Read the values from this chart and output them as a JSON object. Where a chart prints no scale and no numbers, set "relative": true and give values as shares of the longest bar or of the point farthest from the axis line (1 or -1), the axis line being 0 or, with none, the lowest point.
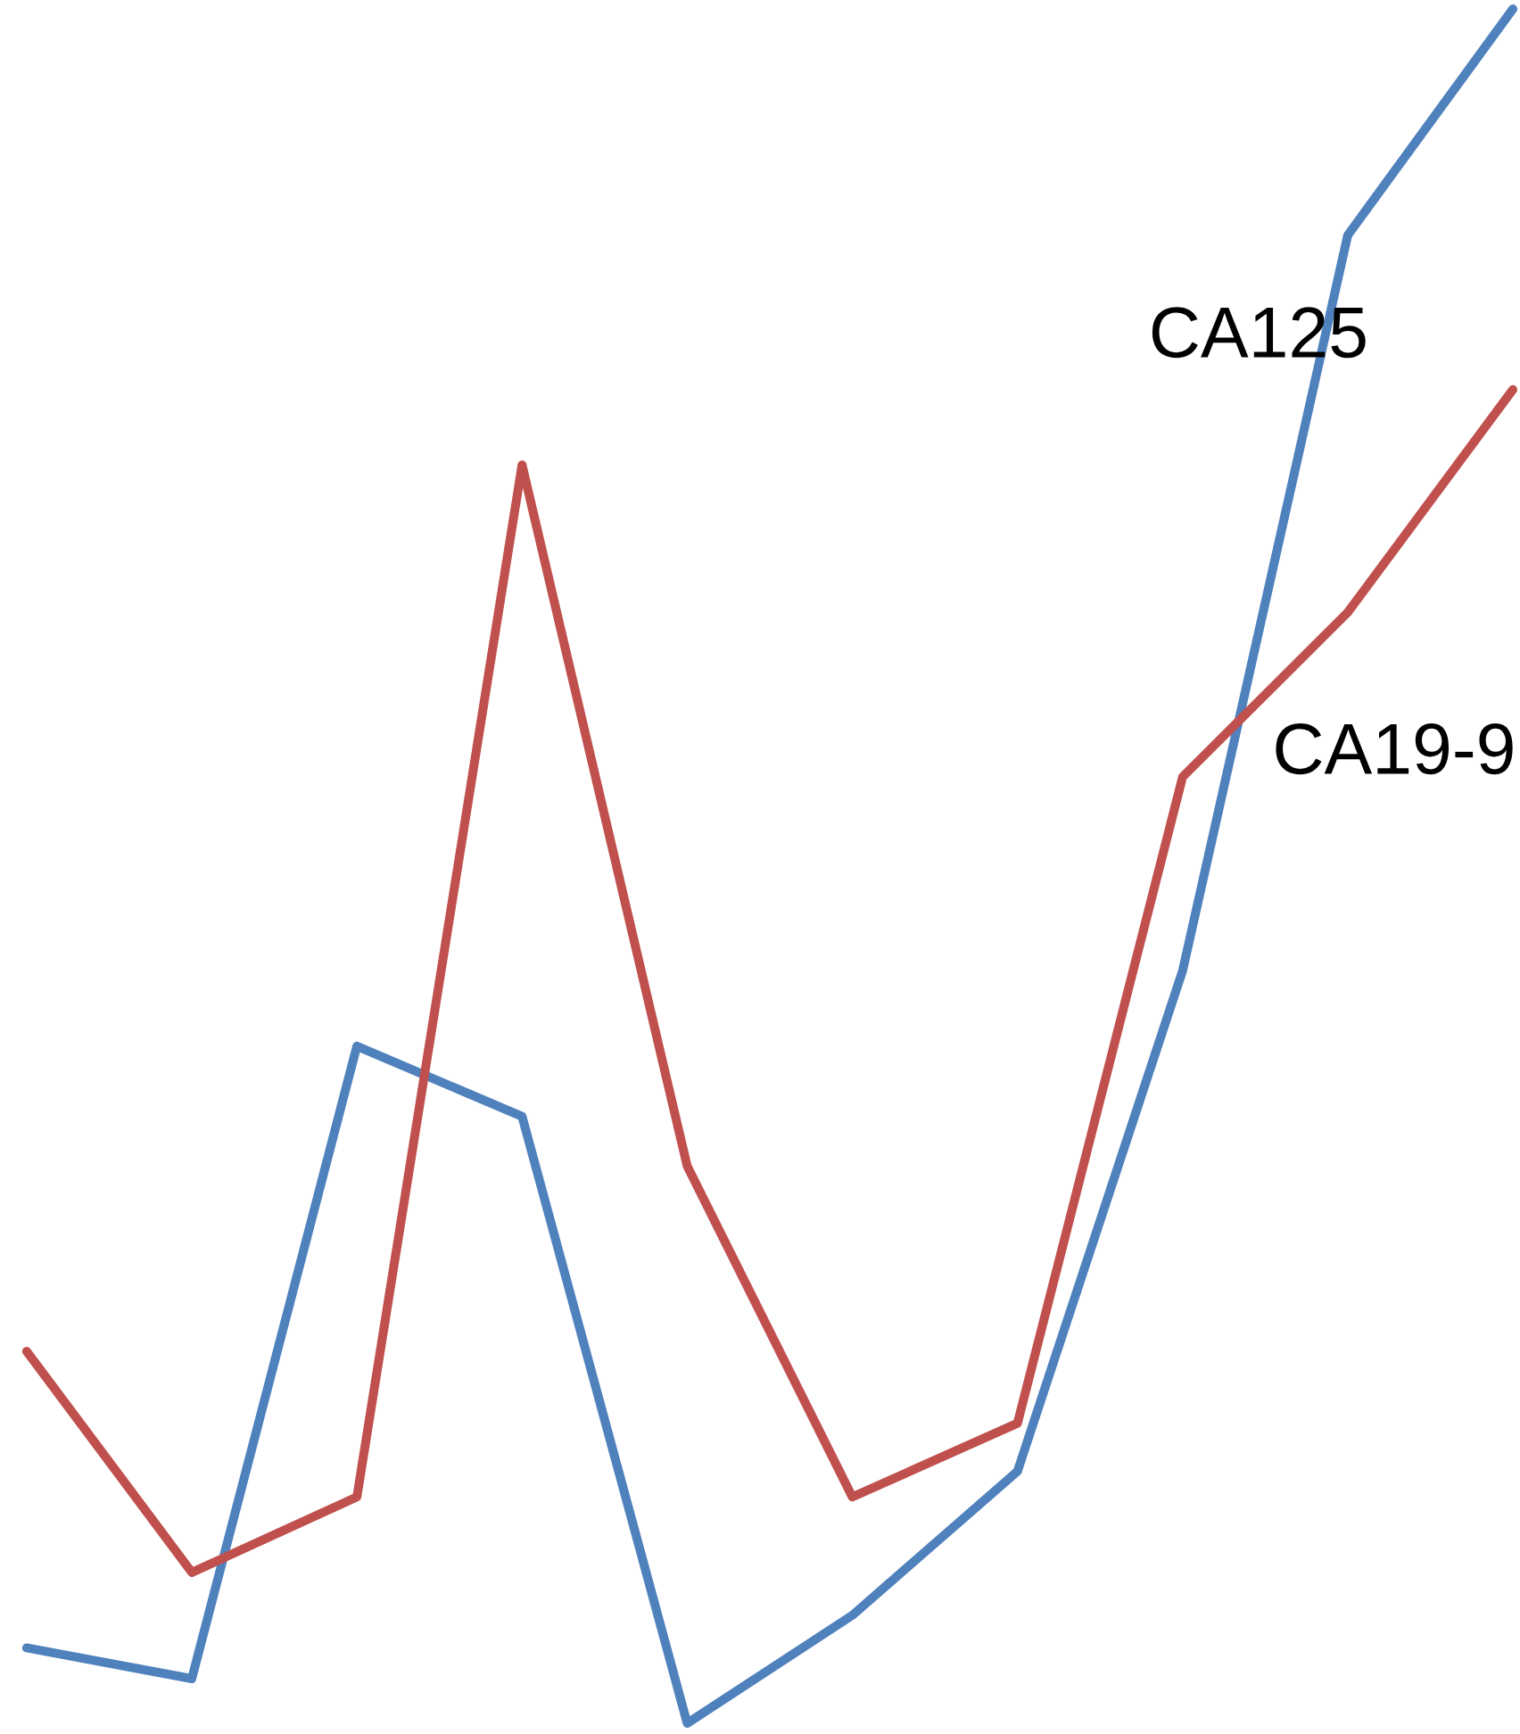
{
  "chart_data": {
    "type": "line",
    "relative": true,
    "categories": [
      null,
      null,
      null,
      null,
      null,
      null,
      null,
      null,
      null,
      null
    ],
    "series": [
      {
        "name": "CA125",
        "color": "#4f81bd",
        "values": [
          0.044,
          0.026,
          0.395,
          0.354,
          0,
          0.063,
          0.147,
          0.439,
          0.868,
          1
        ]
      },
      {
        "name": "CA19-9",
        "color": "#c0504d",
        "values": [
          0.217,
          0.088,
          0.132,
          0.734,
          0.325,
          0.132,
          0.175,
          0.552,
          0.648,
          0.778
        ]
      }
    ]
  }
}
